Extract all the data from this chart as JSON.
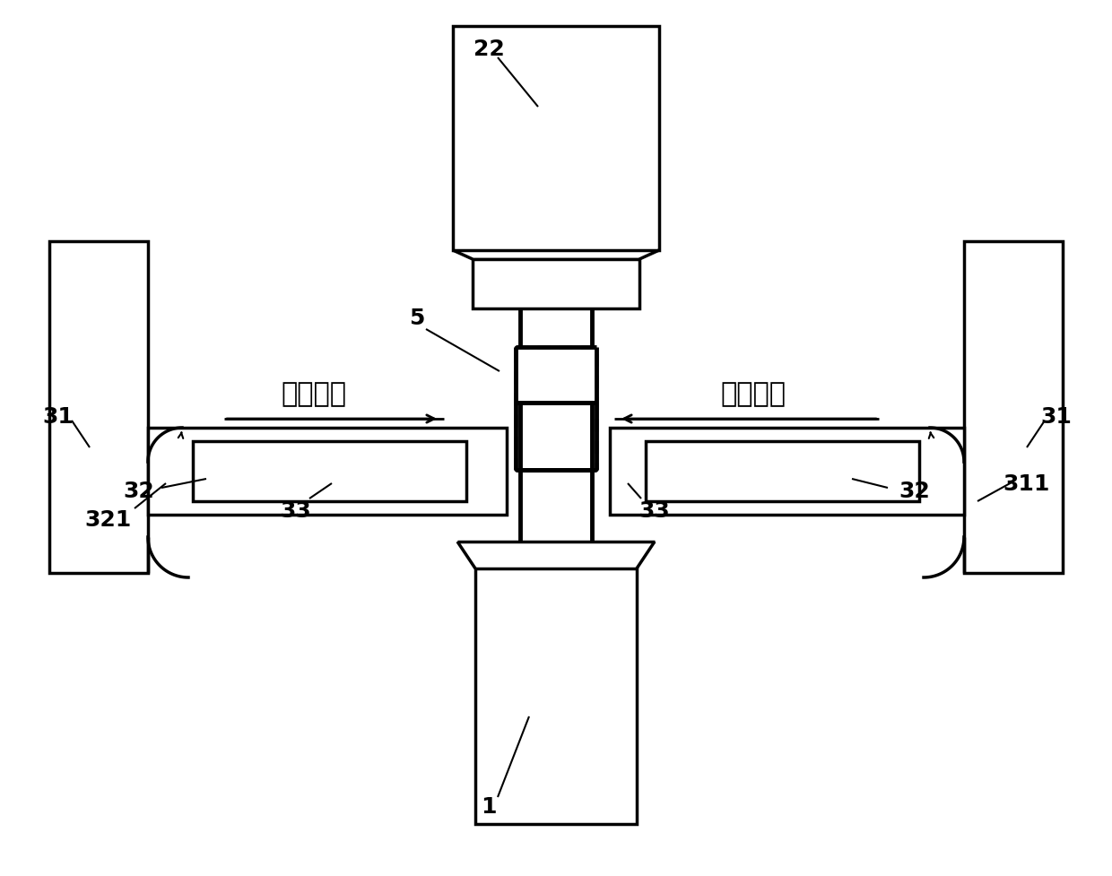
{
  "bg_color": "#ffffff",
  "line_color": "#000000",
  "lw": 2.5,
  "tlw": 3.5,
  "dlw": 2.0
}
